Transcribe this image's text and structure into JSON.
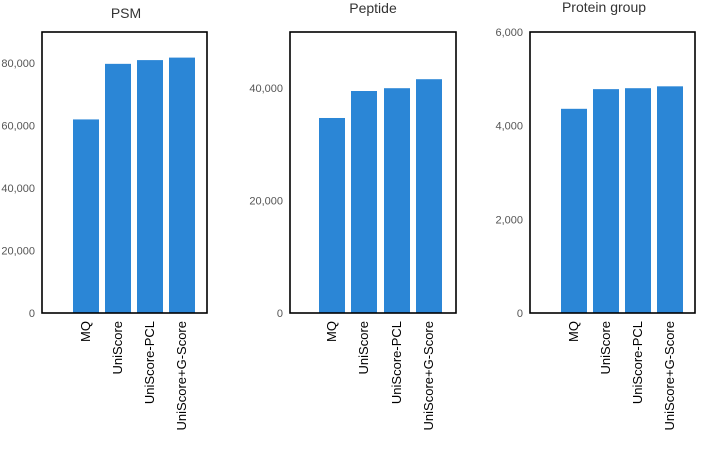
{
  "colors": {
    "bar": "#2b86d6",
    "frame": "#000000",
    "background": "#ffffff"
  },
  "chart_data": [
    {
      "type": "bar",
      "title": "PSM",
      "xlabel": "",
      "ylabel": "",
      "categories": [
        "MQ",
        "UniScore",
        "UniScore-PCL",
        "UniScore+G-Score"
      ],
      "values": [
        62000,
        79800,
        81000,
        81800
      ],
      "ylim": [
        0,
        90000
      ],
      "yticks": [
        0,
        20000,
        40000,
        60000,
        80000
      ],
      "ytick_labels": [
        "0",
        "20,000",
        "40,000",
        "60,000",
        "80,000"
      ]
    },
    {
      "type": "bar",
      "title": "Peptide",
      "xlabel": "",
      "ylabel": "",
      "categories": [
        "MQ",
        "UniScore",
        "UniScore-PCL",
        "UniScore+G-Score"
      ],
      "values": [
        34700,
        39500,
        40000,
        41600
      ],
      "ylim": [
        0,
        50000
      ],
      "yticks": [
        0,
        20000,
        40000
      ],
      "ytick_labels": [
        "0",
        "20,000",
        "40,000"
      ]
    },
    {
      "type": "bar",
      "title": "Protein group",
      "xlabel": "",
      "ylabel": "",
      "categories": [
        "MQ",
        "UniScore",
        "UniScore-PCL",
        "UniScore+G-Score"
      ],
      "values": [
        4360,
        4780,
        4800,
        4840
      ],
      "ylim": [
        0,
        6000
      ],
      "yticks": [
        0,
        2000,
        4000,
        6000
      ],
      "ytick_labels": [
        "0",
        "2,000",
        "4,000",
        "6,000"
      ]
    }
  ]
}
